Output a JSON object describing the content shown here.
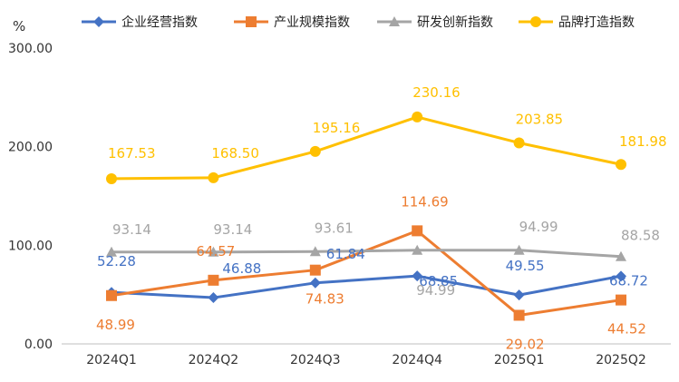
{
  "chart_data": {
    "type": "line",
    "title": "",
    "ylabel": "%",
    "xlabel": "",
    "ylim": [
      0,
      300
    ],
    "yticks": [
      "0.00",
      "100.00",
      "200.00",
      "300.00"
    ],
    "categories": [
      "2024Q1",
      "2024Q2",
      "2024Q3",
      "2024Q4",
      "2025Q1",
      "2025Q2"
    ],
    "legend_position": "top",
    "grid": false,
    "series": [
      {
        "name": "企业经营指数",
        "color": "#4472C4",
        "marker": "diamond",
        "values": [
          52.28,
          46.88,
          61.84,
          68.85,
          49.55,
          68.72
        ],
        "labels": [
          "52.28",
          "46.88",
          "61.84",
          "68.85",
          "49.55",
          "68.72"
        ]
      },
      {
        "name": "产业规模指数",
        "color": "#ED7D31",
        "marker": "square",
        "values": [
          48.99,
          64.57,
          74.83,
          114.69,
          29.02,
          44.52
        ],
        "labels": [
          "48.99",
          "64.57",
          "74.83",
          "114.69",
          "29.02",
          "44.52"
        ]
      },
      {
        "name": "研发创新指数",
        "color": "#A5A5A5",
        "marker": "triangle",
        "values": [
          93.14,
          93.14,
          93.61,
          94.99,
          94.99,
          88.58
        ],
        "labels": [
          "93.14",
          "93.14",
          "93.61",
          "94.99",
          "94.99",
          "88.58"
        ]
      },
      {
        "name": "品牌打造指数",
        "color": "#FFC000",
        "marker": "circle",
        "values": [
          167.53,
          168.5,
          195.16,
          230.16,
          203.85,
          181.98
        ],
        "labels": [
          "167.53",
          "168.50",
          "195.16",
          "230.16",
          "203.85",
          "181.98"
        ]
      }
    ]
  }
}
